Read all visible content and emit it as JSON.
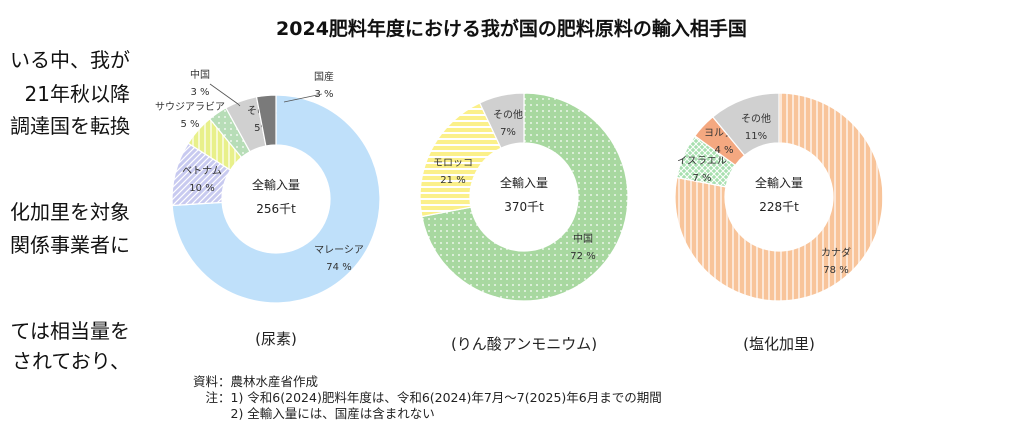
{
  "left_text_lines": [
    "いる中、我が",
    "21年秋以降",
    "調達国を転換",
    "",
    "化加里を対象",
    "関係事業者に",
    "",
    "ては相当量を",
    "されており、"
  ],
  "title": "2024肥料年度における我が国の肥料原料の輸入相手国",
  "notes": [
    "資料：農林水産省作成",
    "　注：1) 令和6(2024)肥料年度は、令和6(2024)年7月～7(2025)年6月までの期間",
    "　　　2) 全輸入量には、国産は含まれない"
  ],
  "chart_data": [
    {
      "type": "pie",
      "caption": "(尿素)",
      "center_label": "全輸入量",
      "center_value": "256千t",
      "slices": [
        {
          "name": "マレーシア",
          "value": 74,
          "label": "74 %",
          "color": "#bfe0fa",
          "pattern": "solid"
        },
        {
          "name": "ベトナム",
          "value": 10,
          "label": "10 %",
          "color": "#c8caf0",
          "pattern": "diagonal"
        },
        {
          "name": "サウジアラビア",
          "value": 5,
          "label": "5 %",
          "color": "#e8f08a",
          "pattern": "vertical"
        },
        {
          "name": "中国",
          "value": 3,
          "label": "3 %",
          "color": "#b7ddb7",
          "pattern": "dots"
        },
        {
          "name": "その他",
          "value": 5,
          "label": "5%",
          "color": "#d0d0d0",
          "pattern": "solid"
        },
        {
          "name": "国産",
          "value": 3,
          "label": "3 %",
          "color": "#7a7a7a",
          "pattern": "solid"
        }
      ]
    },
    {
      "type": "pie",
      "caption": "(りん酸アンモニウム)",
      "center_label": "全輸入量",
      "center_value": "370千t",
      "slices": [
        {
          "name": "中国",
          "value": 72,
          "label": "72 %",
          "color": "#a8d8a0",
          "pattern": "dots"
        },
        {
          "name": "モロッコ",
          "value": 21,
          "label": "21 %",
          "color": "#fbf08a",
          "pattern": "horizontal"
        },
        {
          "name": "その他",
          "value": 7,
          "label": "7%",
          "color": "#d0d0d0",
          "pattern": "solid"
        }
      ]
    },
    {
      "type": "pie",
      "caption": "(塩化加里)",
      "center_label": "全輸入量",
      "center_value": "228千t",
      "slices": [
        {
          "name": "カナダ",
          "value": 78,
          "label": "78 %",
          "color": "#f8c49a",
          "pattern": "vertical"
        },
        {
          "name": "イスラエル",
          "value": 7,
          "label": "7 %",
          "color": "#a8e0b0",
          "pattern": "grid"
        },
        {
          "name": "ヨルダン",
          "value": 4,
          "label": "4 %",
          "color": "#f4a880",
          "pattern": "solid"
        },
        {
          "name": "その他",
          "value": 11,
          "label": "11%",
          "color": "#d0d0d0",
          "pattern": "solid"
        }
      ]
    }
  ]
}
